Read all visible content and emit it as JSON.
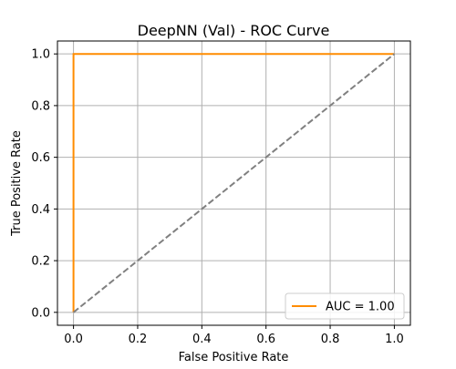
{
  "chart_data": {
    "type": "line",
    "title": "DeepNN (Val) - ROC Curve",
    "xlabel": "False Positive Rate",
    "ylabel": "True Positive Rate",
    "xlim": [
      -0.05,
      1.05
    ],
    "ylim": [
      -0.05,
      1.05
    ],
    "xticks": [
      0.0,
      0.2,
      0.4,
      0.6,
      0.8,
      1.0
    ],
    "yticks": [
      0.0,
      0.2,
      0.4,
      0.6,
      0.8,
      1.0
    ],
    "xtick_labels": [
      "0.0",
      "0.2",
      "0.4",
      "0.6",
      "0.8",
      "1.0"
    ],
    "ytick_labels": [
      "0.0",
      "0.2",
      "0.4",
      "0.6",
      "0.8",
      "1.0"
    ],
    "grid": true,
    "legend_position": "lower right",
    "series": [
      {
        "name": "AUC = 1.00",
        "color": "#ff8c00",
        "style": "solid",
        "x": [
          0.0,
          0.0,
          1.0
        ],
        "y": [
          0.0,
          1.0,
          1.0
        ]
      },
      {
        "color": "#808080",
        "style": "dashed",
        "x": [
          0.0,
          1.0
        ],
        "y": [
          0.0,
          1.0
        ]
      }
    ]
  }
}
